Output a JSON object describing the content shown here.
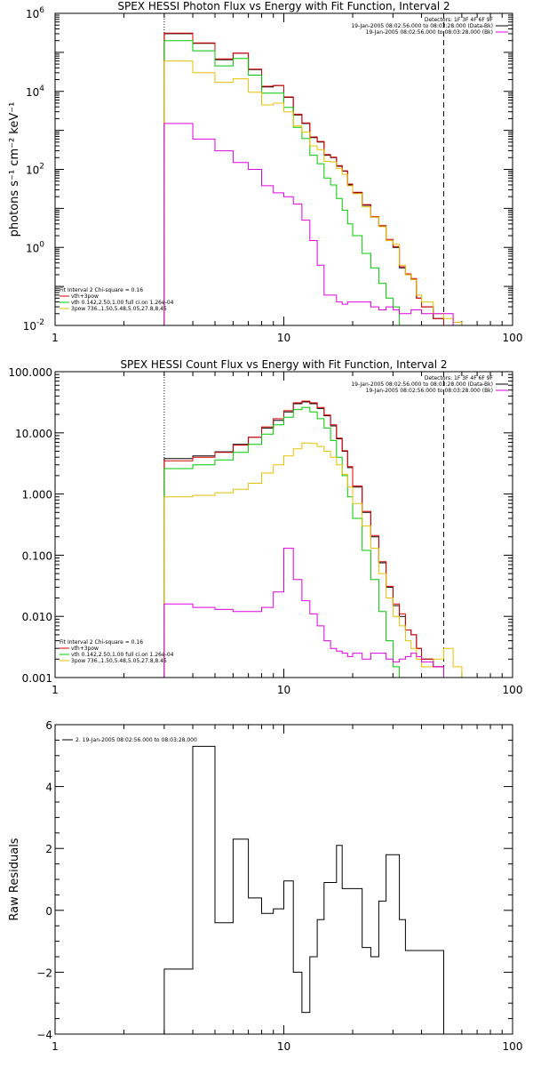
{
  "chart_data": [
    {
      "type": "line",
      "title": "SPEX HESSI Photon Flux vs Energy with Fit Function, Interval 2",
      "ylabel": "photons s⁻¹ cm⁻² keV⁻¹",
      "xscale": "log",
      "yscale": "log",
      "xlim": [
        1,
        100
      ],
      "ylim": [
        0.01,
        1000000
      ],
      "xticks": [
        {
          "v": 1,
          "label": "1"
        },
        {
          "v": 10,
          "label": "10"
        },
        {
          "v": 100,
          "label": "100"
        }
      ],
      "yticks": [
        {
          "v": 0.01,
          "base": "10",
          "exp": "-2"
        },
        {
          "v": 1,
          "base": "10",
          "exp": "0"
        },
        {
          "v": 100,
          "base": "10",
          "exp": "2"
        },
        {
          "v": 10000,
          "base": "10",
          "exp": "4"
        },
        {
          "v": 1000000,
          "base": "10",
          "exp": "6"
        }
      ],
      "vlines": [
        {
          "x": 3,
          "style": "dotted"
        },
        {
          "x": 50,
          "style": "dashed"
        }
      ],
      "legend_top": [
        "Detectors: 1F 3F 4F 6F 9F",
        "19-Jan-2005 08:02:56.000 to 08:03:28.000 (Data-Bk)",
        "19-Jan-2005 08:02:56.000 to 08:03:28.000 (Bk)"
      ],
      "legend_bottom": [
        {
          "text": "Fit Interval  2   Chi-square = 0.16",
          "color": "#000000"
        },
        {
          "text": "vth+3pow",
          "color": "#e00000"
        },
        {
          "text": "vth 0.142,2.50,1.00  full ci.on 1.26e-04",
          "color": "#00c800"
        },
        {
          "text": "3pow 736.,1.50,5.48,5.05,27.8,8.45",
          "color": "#e8c000"
        }
      ],
      "edges": [
        3,
        3.5,
        4,
        4.5,
        5,
        5.5,
        6,
        6.5,
        7,
        7.5,
        8,
        8.5,
        9,
        9.5,
        10,
        11,
        12,
        13,
        14,
        15,
        16,
        17,
        18,
        19,
        20,
        22,
        24,
        26,
        28,
        30,
        32,
        34,
        36,
        38,
        40,
        45,
        50,
        55,
        60
      ],
      "series": [
        {
          "name": "Data-Bk",
          "color": "#000000",
          "values": [
            300000,
            300000,
            170000,
            170000,
            65000,
            65000,
            95000,
            95000,
            36000,
            36000,
            13000,
            13000,
            14000,
            14000,
            7000,
            2500,
            1500,
            650,
            500,
            230,
            200,
            120,
            90,
            40,
            25,
            12,
            6,
            3.5,
            1.5,
            1,
            0.3,
            0.2,
            0.15,
            0.05,
            0.03,
            0.015,
            null,
            null
          ]
        },
        {
          "name": "vth+3pow",
          "color": "#e00000",
          "values": [
            310000,
            310000,
            175000,
            175000,
            68000,
            68000,
            96000,
            96000,
            37000,
            37000,
            13500,
            13500,
            14200,
            14200,
            7200,
            2600,
            1550,
            680,
            520,
            240,
            205,
            125,
            92,
            42,
            26,
            12.5,
            6.2,
            3.6,
            1.6,
            1.05,
            0.32,
            0.21,
            0.16,
            0.05,
            0.03,
            0.015,
            null,
            null
          ]
        },
        {
          "name": "vth",
          "color": "#00c800",
          "values": [
            200000,
            200000,
            110000,
            110000,
            45000,
            45000,
            70000,
            70000,
            26000,
            26000,
            9000,
            9000,
            9000,
            9000,
            3900,
            1200,
            620,
            230,
            140,
            60,
            40,
            18,
            9,
            4,
            2,
            0.7,
            0.3,
            0.12,
            0.05,
            0.03,
            0.01,
            0.01,
            null,
            null,
            null,
            null,
            null,
            null
          ]
        },
        {
          "name": "3pow",
          "color": "#e8c000",
          "values": [
            60000,
            60000,
            30000,
            30000,
            17000,
            17000,
            21000,
            21000,
            9500,
            9500,
            4500,
            4500,
            5000,
            5000,
            3000,
            1300,
            900,
            400,
            320,
            160,
            155,
            105,
            75,
            38,
            24,
            11,
            6,
            3.4,
            1.5,
            1.2,
            0.35,
            0.2,
            0.15,
            0.06,
            0.04,
            0.02,
            0.015,
            0.012
          ]
        },
        {
          "name": "Bk",
          "color": "#e000e0",
          "values": [
            1500,
            1500,
            600,
            600,
            300,
            300,
            150,
            150,
            100,
            100,
            38,
            38,
            25,
            25,
            20,
            13,
            5,
            1.5,
            0.35,
            0.06,
            0.06,
            0.04,
            0.035,
            0.04,
            0.04,
            0.04,
            0.03,
            0.025,
            0.03,
            0.025,
            0.02,
            0.02,
            0.025,
            0.025,
            0.02,
            0.02,
            0.02,
            null
          ]
        }
      ]
    },
    {
      "type": "line",
      "title": "SPEX HESSI Count Flux vs Energy with Fit Function, Interval 2",
      "ylabel": "",
      "xscale": "log",
      "yscale": "log",
      "xlim": [
        1,
        100
      ],
      "ylim": [
        0.001,
        100
      ],
      "xticks": [
        {
          "v": 1,
          "label": "1"
        },
        {
          "v": 10,
          "label": "10"
        },
        {
          "v": 100,
          "label": "100"
        }
      ],
      "yticks": [
        {
          "v": 0.001,
          "label": "0.001"
        },
        {
          "v": 0.01,
          "label": "0.010"
        },
        {
          "v": 0.1,
          "label": "0.100"
        },
        {
          "v": 1,
          "label": "1.000"
        },
        {
          "v": 10,
          "label": "10.000"
        },
        {
          "v": 100,
          "label": "100.000"
        }
      ],
      "vlines": [
        {
          "x": 3,
          "style": "dotted"
        },
        {
          "x": 50,
          "style": "dashed"
        }
      ],
      "legend_top": [
        "Detectors: 1F 3F 4F 6F 9F",
        "19-Jan-2005 08:02:56.000 to 08:03:28.000 (Data-Bk)",
        "19-Jan-2005 08:02:56.000 to 08:03:28.000 (Bk)"
      ],
      "legend_bottom": [
        {
          "text": "Fit Interval  2   Chi-square = 0.16",
          "color": "#000000"
        },
        {
          "text": "vth+3pow",
          "color": "#e00000"
        },
        {
          "text": "vth 0.142,2.50,1.00  full ci.on 1.26e-04",
          "color": "#00c800"
        },
        {
          "text": "3pow 736.,1.50,5.48,5.05,27.8,8.45",
          "color": "#e8c000"
        }
      ],
      "edges": [
        3,
        3.5,
        4,
        4.5,
        5,
        5.5,
        6,
        6.5,
        7,
        7.5,
        8,
        8.5,
        9,
        9.5,
        10,
        11,
        12,
        13,
        14,
        15,
        16,
        17,
        18,
        19,
        20,
        22,
        24,
        26,
        28,
        30,
        32,
        34,
        36,
        38,
        40,
        45,
        50,
        55,
        60
      ],
      "series": [
        {
          "name": "Data-Bk",
          "color": "#000000",
          "values": [
            3.8,
            3.8,
            4.2,
            4.2,
            4.9,
            4.9,
            6.5,
            6.5,
            8.5,
            8.5,
            12,
            12,
            16,
            16,
            22,
            30,
            32,
            30,
            25,
            19,
            13,
            8,
            5,
            2.7,
            1.3,
            0.5,
            0.2,
            0.075,
            0.03,
            0.015,
            0.01,
            0.006,
            0.005,
            0.003,
            0.002,
            0.0015,
            null,
            null
          ]
        },
        {
          "name": "vth+3pow",
          "color": "#e00000",
          "values": [
            3.5,
            3.5,
            4,
            4,
            4.8,
            4.8,
            6.3,
            6.3,
            8.5,
            8.5,
            12.5,
            12.5,
            17,
            17,
            23,
            31,
            33,
            31,
            26,
            19.5,
            13.5,
            8.2,
            5.1,
            2.8,
            1.35,
            0.52,
            0.21,
            0.078,
            0.031,
            0.016,
            0.011,
            0.006,
            0.005,
            0.003,
            0.002,
            0.0015,
            null,
            null
          ]
        },
        {
          "name": "vth",
          "color": "#00c800",
          "values": [
            2.6,
            2.6,
            3,
            3,
            3.6,
            3.6,
            4.8,
            4.8,
            6.5,
            6.5,
            9.5,
            9.5,
            13.5,
            13.5,
            18,
            24,
            26,
            22,
            17,
            12,
            7.5,
            4,
            2,
            0.9,
            0.4,
            0.12,
            0.04,
            0.012,
            0.004,
            0.0015,
            null,
            null,
            null,
            null,
            null,
            null,
            null,
            null
          ]
        },
        {
          "name": "3pow",
          "color": "#e8c000",
          "values": [
            0.9,
            0.9,
            0.95,
            0.95,
            1.05,
            1.05,
            1.2,
            1.2,
            1.5,
            1.5,
            2.2,
            2.2,
            3,
            3,
            4.2,
            5.5,
            6.8,
            6.7,
            6,
            5,
            4,
            3,
            2.1,
            1.3,
            0.7,
            0.3,
            0.13,
            0.05,
            0.02,
            0.01,
            0.007,
            0.004,
            0.003,
            0.002,
            0.0015,
            0.002,
            0.003,
            0.0015
          ]
        },
        {
          "name": "Bk",
          "color": "#e000e0",
          "values": [
            0.016,
            0.016,
            0.014,
            0.014,
            0.013,
            0.013,
            0.012,
            0.012,
            0.012,
            0.012,
            0.014,
            0.014,
            0.025,
            0.025,
            0.13,
            0.04,
            0.018,
            0.011,
            0.007,
            0.004,
            0.003,
            0.0027,
            0.0025,
            0.0022,
            0.0025,
            0.002,
            0.0025,
            0.0025,
            0.002,
            0.0018,
            0.002,
            0.0022,
            0.0025,
            0.0022,
            0.0018,
            0.0015,
            0.001,
            null
          ]
        }
      ]
    },
    {
      "type": "line",
      "title": "",
      "ylabel": "Raw Residuals",
      "xscale": "log",
      "yscale": "linear",
      "xlim": [
        1,
        100
      ],
      "ylim": [
        -4,
        6
      ],
      "xticks": [
        {
          "v": 1,
          "label": "1"
        },
        {
          "v": 10,
          "label": "10"
        },
        {
          "v": 100,
          "label": "100"
        }
      ],
      "yticks": [
        {
          "v": -4,
          "label": "−4"
        },
        {
          "v": -2,
          "label": "−2"
        },
        {
          "v": 0,
          "label": "0"
        },
        {
          "v": 2,
          "label": "2"
        },
        {
          "v": 4,
          "label": "4"
        },
        {
          "v": 6,
          "label": "6"
        }
      ],
      "vlines": [],
      "legend_top": [],
      "legend_bottom": [],
      "legend_left": "2. 19-Jan-2005 08:02:56.000 to 08:03:28.000",
      "edges": [
        3,
        4,
        4.5,
        5,
        6,
        6.5,
        7,
        7.5,
        8,
        9,
        9.5,
        10,
        11,
        12,
        13,
        14,
        15,
        16,
        17,
        18,
        19,
        20,
        22,
        24,
        26,
        28,
        30,
        32,
        34,
        36,
        38,
        40,
        45,
        50
      ],
      "series": [
        {
          "name": "",
          "color": "#000000",
          "values": [
            -1.9,
            5.3,
            5.3,
            -0.4,
            2.3,
            2.3,
            0.4,
            0.4,
            -0.1,
            0.05,
            0.05,
            0.95,
            -2,
            -3.3,
            -1.5,
            -0.3,
            0.9,
            0.9,
            2.1,
            0.7,
            0.7,
            0.7,
            -1.2,
            -1.5,
            0.3,
            1.8,
            1.8,
            -0.3,
            -1.3,
            -1.3,
            -1.3,
            -1.3,
            -1.3
          ]
        }
      ]
    }
  ]
}
